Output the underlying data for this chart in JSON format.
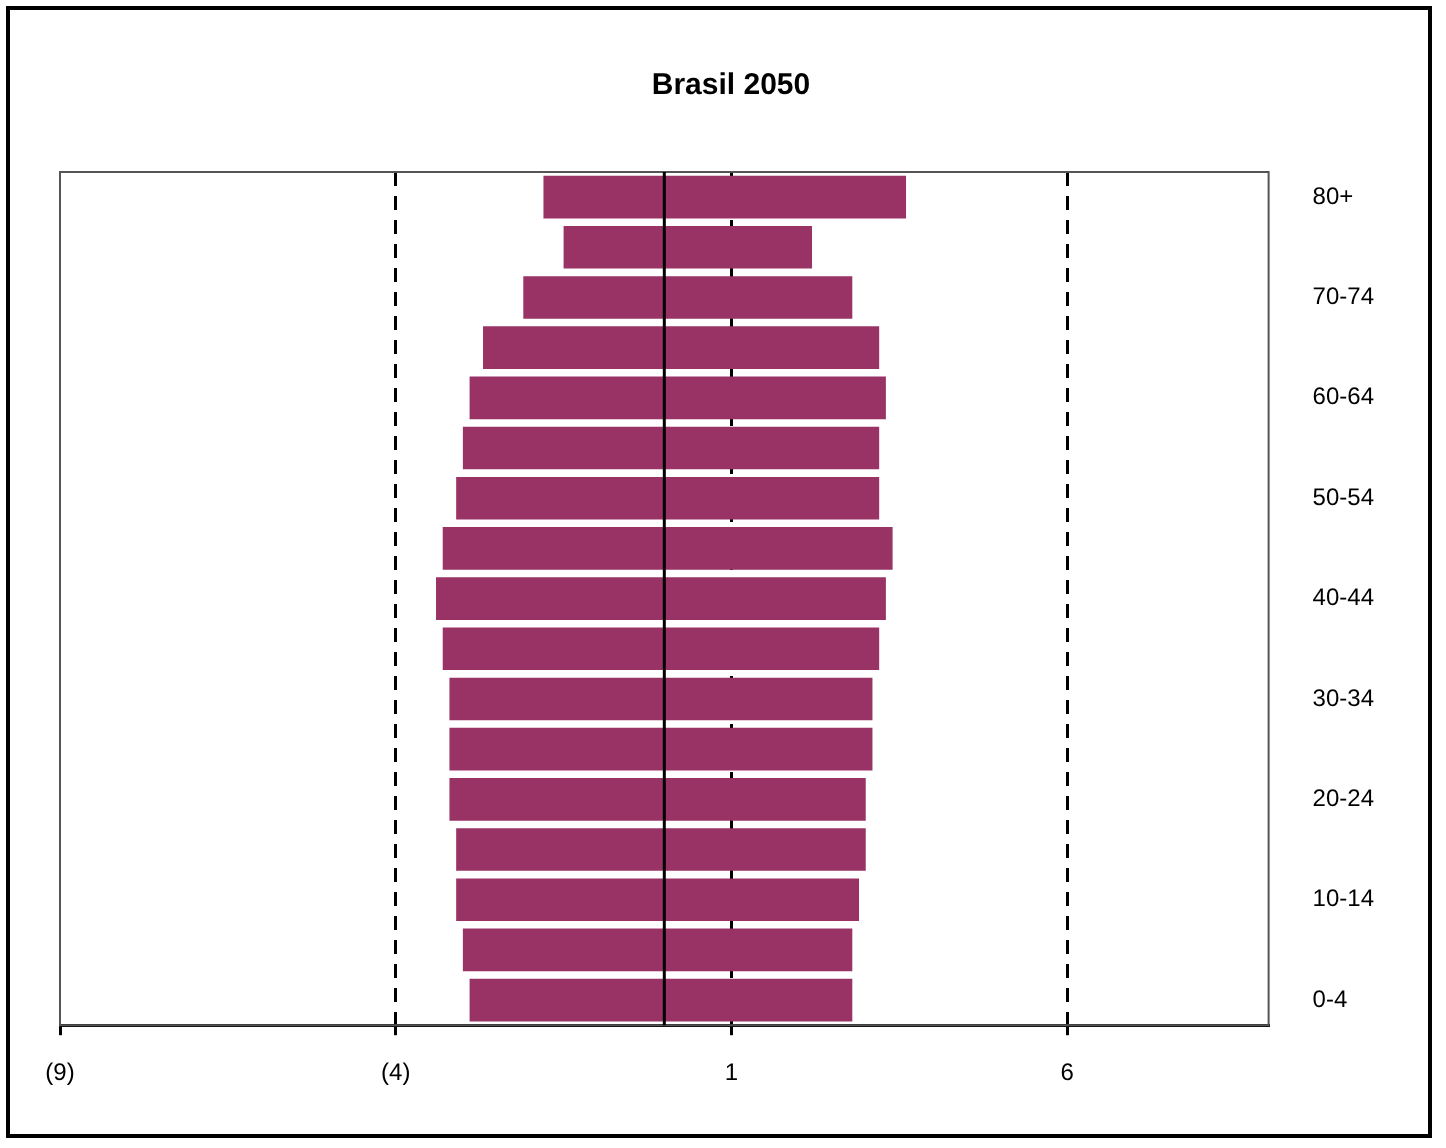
{
  "chart_data": {
    "type": "bar",
    "orientation": "horizontal",
    "stacked": true,
    "title": "Brasil 2050",
    "categories": [
      "80+",
      null,
      "70-74",
      null,
      "60-64",
      null,
      "50-54",
      null,
      "40-44",
      null,
      "30-34",
      null,
      "20-24",
      null,
      "10-14",
      null,
      "0-4"
    ],
    "series": [
      {
        "color": "#993366",
        "values": [
          -1.8,
          -1.5,
          -2.1,
          -2.7,
          -2.9,
          -3.0,
          -3.1,
          -3.3,
          -3.4,
          -3.3,
          -3.2,
          -3.2,
          -3.2,
          -3.1,
          -3.1,
          -3.0,
          -2.9
        ]
      },
      {
        "color": "#993366",
        "values": [
          3.6,
          2.2,
          2.8,
          3.2,
          3.3,
          3.2,
          3.2,
          3.4,
          3.3,
          3.2,
          3.1,
          3.1,
          3.0,
          3.0,
          2.9,
          2.8,
          2.8
        ]
      }
    ],
    "xlim": [
      -9,
      9
    ],
    "xticks": [
      {
        "value": -9,
        "label": "(9)"
      },
      {
        "value": -4,
        "label": "(4)"
      },
      1,
      6
    ],
    "grid": "x",
    "ref_lines": [
      {
        "axis": "x",
        "value": 0
      }
    ],
    "legend": false
  }
}
